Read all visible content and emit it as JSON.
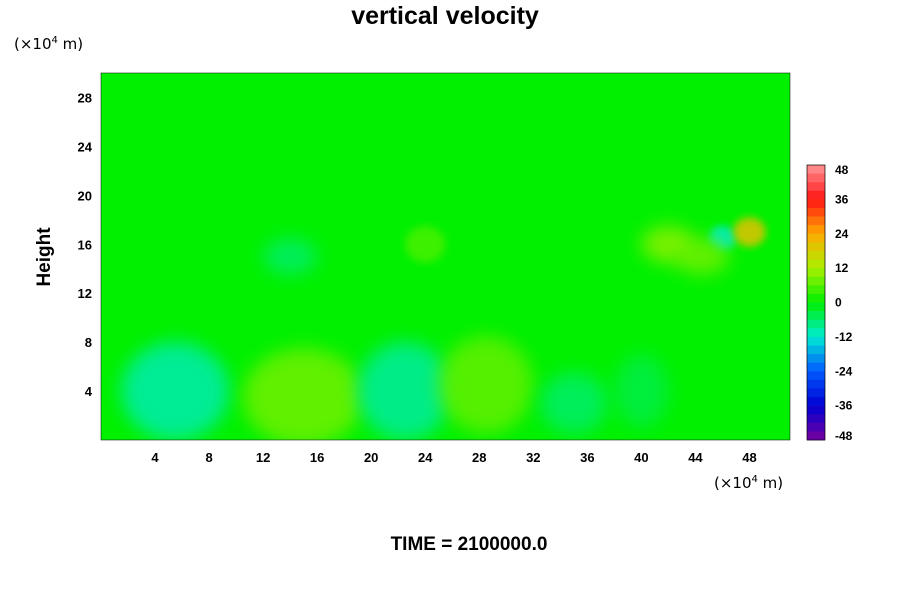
{
  "colors": {
    "background": "#ffffff",
    "field_base": "#00f000"
  },
  "chart_data": {
    "type": "heatmap",
    "title": "vertical velocity",
    "ylabel": "Height",
    "xlabel": "",
    "y_unit_prefix": "(×10",
    "y_unit_exp": "4",
    "y_unit_suffix": " m)",
    "x_unit_prefix": "(×10",
    "x_unit_exp": "4",
    "x_unit_suffix": " m)",
    "xlim": [
      0,
      51
    ],
    "ylim": [
      0,
      30
    ],
    "x_ticks": [
      4,
      8,
      12,
      16,
      20,
      24,
      28,
      32,
      36,
      40,
      44,
      48
    ],
    "y_ticks": [
      4,
      8,
      12,
      16,
      20,
      24,
      28
    ],
    "x_tick_labels": [
      "4",
      "8",
      "12",
      "16",
      "20",
      "24",
      "28",
      "32",
      "36",
      "40",
      "44",
      "48"
    ],
    "y_tick_labels": [
      "4",
      "8",
      "12",
      "16",
      "20",
      "24",
      "28"
    ],
    "colorbar": {
      "range": [
        -48,
        48
      ],
      "ticks": [
        48,
        36,
        24,
        12,
        0,
        -12,
        -24,
        -36,
        -48
      ],
      "tick_labels": [
        "48",
        "36",
        "24",
        "12",
        "0",
        "-12",
        "-24",
        "-36",
        "-48"
      ]
    },
    "features": [
      {
        "x": 5.5,
        "y": 4.0,
        "value": -10,
        "rx": 4,
        "ry": 4
      },
      {
        "x": 15.0,
        "y": 3.5,
        "value": 8,
        "rx": 4.5,
        "ry": 4
      },
      {
        "x": 22.5,
        "y": 4.0,
        "value": -9,
        "rx": 3.5,
        "ry": 4
      },
      {
        "x": 28.5,
        "y": 4.5,
        "value": 7,
        "rx": 3.5,
        "ry": 4
      },
      {
        "x": 35.0,
        "y": 3.0,
        "value": -6,
        "rx": 2.5,
        "ry": 2.5
      },
      {
        "x": 40.0,
        "y": 4.0,
        "value": -4,
        "rx": 2,
        "ry": 3
      },
      {
        "x": 46.0,
        "y": 16.5,
        "value": -12,
        "rx": 1,
        "ry": 1
      },
      {
        "x": 48.0,
        "y": 17.0,
        "value": 20,
        "rx": 1.2,
        "ry": 1.2
      },
      {
        "x": 42.0,
        "y": 16.0,
        "value": 10,
        "rx": 2,
        "ry": 1.5
      },
      {
        "x": 44.5,
        "y": 15.0,
        "value": 8,
        "rx": 2,
        "ry": 1.5
      },
      {
        "x": 14.0,
        "y": 15.0,
        "value": -6,
        "rx": 2,
        "ry": 1.5
      },
      {
        "x": 24.0,
        "y": 16.0,
        "value": 5,
        "rx": 1.5,
        "ry": 1.5
      }
    ],
    "time_label": "TIME = 2100000.0"
  }
}
